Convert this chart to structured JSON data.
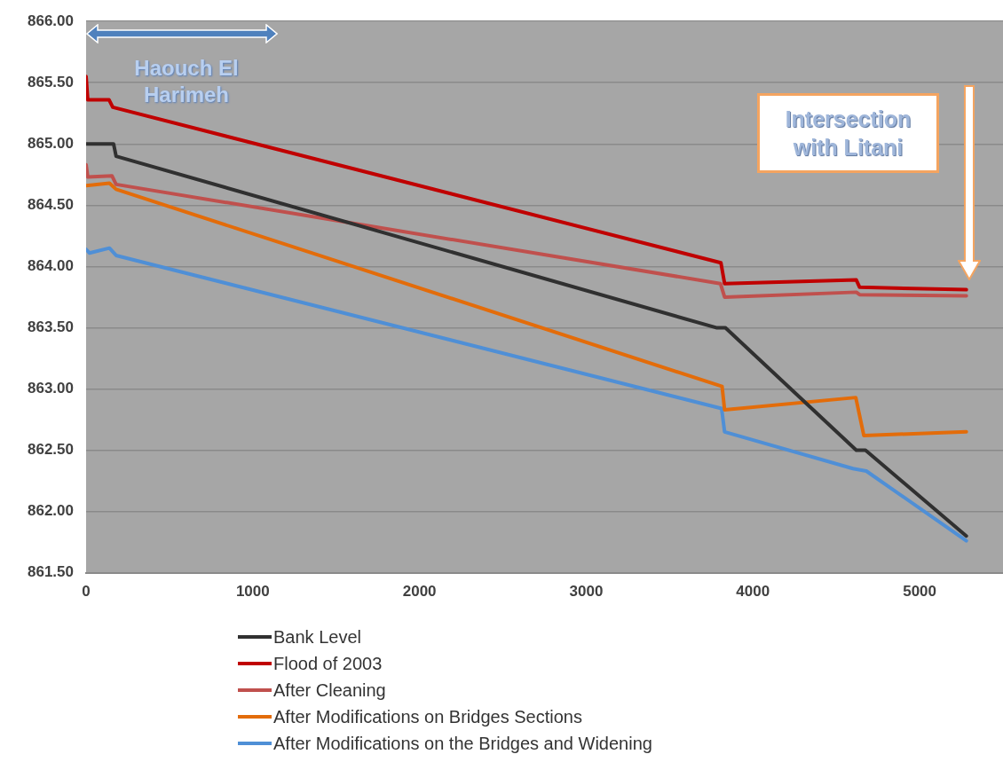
{
  "chart_data": {
    "type": "line",
    "xlim": [
      0,
      5500
    ],
    "xticks": [
      0,
      1000,
      2000,
      3000,
      4000,
      5000
    ],
    "ylim": [
      861.5,
      866
    ],
    "yticks": [
      {
        "value": 861.5,
        "label": "861.50"
      },
      {
        "value": 862,
        "label": "862.00"
      },
      {
        "value": 862.5,
        "label": "862.50"
      },
      {
        "value": 863,
        "label": "863.00"
      },
      {
        "value": 863.5,
        "label": "863.50"
      },
      {
        "value": 864,
        "label": "864.00"
      },
      {
        "value": 864.5,
        "label": "864.50"
      },
      {
        "value": 865,
        "label": "865.00"
      },
      {
        "value": 865.5,
        "label": "865.50"
      },
      {
        "value": 866,
        "label": "866.00"
      }
    ],
    "grid": "y",
    "legend": "bottom",
    "marker": "none",
    "line_style": "solid",
    "annotations": [
      "Haouch El Harimeh",
      "Intersection with Litani"
    ],
    "series": [
      {
        "name": "Bank Level",
        "color": "#303030",
        "x": [
          0,
          165,
          180,
          3780,
          3835,
          4620,
          4675,
          5280
        ],
        "values": [
          865.0,
          865.0,
          864.9,
          863.5,
          863.5,
          862.5,
          862.5,
          861.8
        ]
      },
      {
        "name": "Flood of 2003",
        "color": "#c00000",
        "x": [
          0,
          10,
          138,
          160,
          3808,
          3830,
          4620,
          4640,
          5280
        ],
        "values": [
          865.55,
          865.36,
          865.36,
          865.3,
          864.03,
          863.86,
          863.89,
          863.83,
          863.81
        ]
      },
      {
        "name": "After Cleaning",
        "color": "#c0504d",
        "x": [
          0,
          10,
          155,
          180,
          3805,
          3830,
          4620,
          4640,
          5280
        ],
        "values": [
          864.83,
          864.73,
          864.74,
          864.67,
          863.86,
          863.75,
          863.79,
          863.77,
          863.76
        ]
      },
      {
        "name": "After Modifications on Bridges Sections",
        "color": "#e36c0a",
        "x": [
          0,
          140,
          180,
          3815,
          3830,
          4617,
          4665,
          5280
        ],
        "values": [
          864.66,
          864.68,
          864.63,
          863.02,
          862.83,
          862.93,
          862.62,
          862.65
        ]
      },
      {
        "name": "After Modifications on the Bridges and Widening",
        "color": "#4f8fd6",
        "x": [
          0,
          20,
          140,
          180,
          3812,
          3830,
          4600,
          4680,
          5280
        ],
        "values": [
          864.14,
          864.11,
          864.15,
          864.09,
          862.84,
          862.65,
          862.35,
          862.33,
          861.76
        ]
      }
    ]
  }
}
